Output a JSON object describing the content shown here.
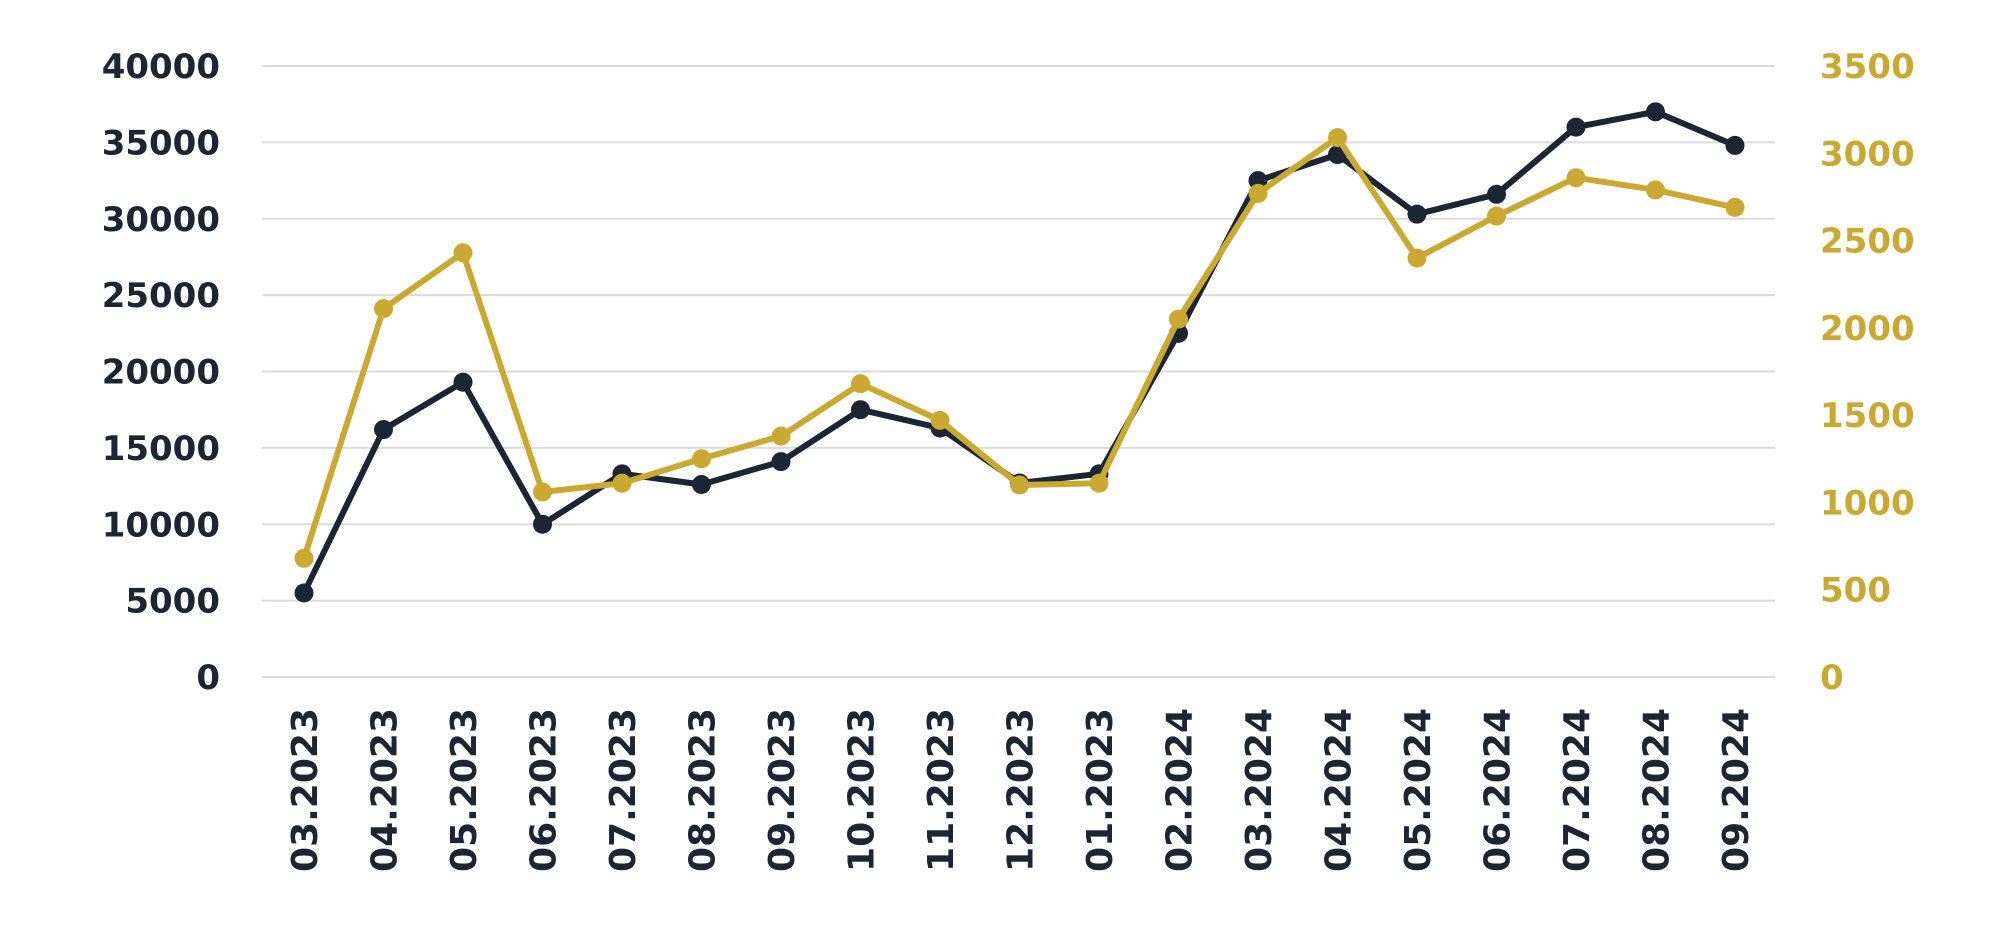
{
  "chart_data": {
    "type": "line",
    "categories": [
      "03.2023",
      "04.2023",
      "05.2023",
      "06.2023",
      "07.2023",
      "08.2023",
      "09.2023",
      "10.2023",
      "11.2023",
      "12.2023",
      "01.2023",
      "02.2024",
      "03.2024",
      "04.2024",
      "05.2024",
      "06.2024",
      "07.2024",
      "08.2024",
      "09.2024"
    ],
    "series": [
      {
        "axis": "left",
        "color": "#1b2533",
        "values": [
          5500,
          16200,
          19300,
          10000,
          13300,
          12600,
          14100,
          17500,
          16300,
          12700,
          13300,
          22500,
          32500,
          34200,
          30300,
          31600,
          36000,
          37000,
          34800
        ]
      },
      {
        "axis": "right",
        "color": "#c9a932",
        "values": [
          680,
          2110,
          2430,
          1060,
          1110,
          1250,
          1380,
          1680,
          1470,
          1100,
          1110,
          2050,
          2770,
          3090,
          2400,
          2640,
          2860,
          2790,
          2690
        ]
      }
    ],
    "y_left": {
      "range": [
        0,
        40000
      ],
      "ticks": [
        "0",
        "5000",
        "10000",
        "15000",
        "20000",
        "25000",
        "30000",
        "35000",
        "40000"
      ]
    },
    "y_right": {
      "range": [
        0,
        3500
      ],
      "ticks": [
        "0",
        "500",
        "1000",
        "1500",
        "2000",
        "2500",
        "3000",
        "3500"
      ]
    },
    "grid": true,
    "legend": "none"
  }
}
